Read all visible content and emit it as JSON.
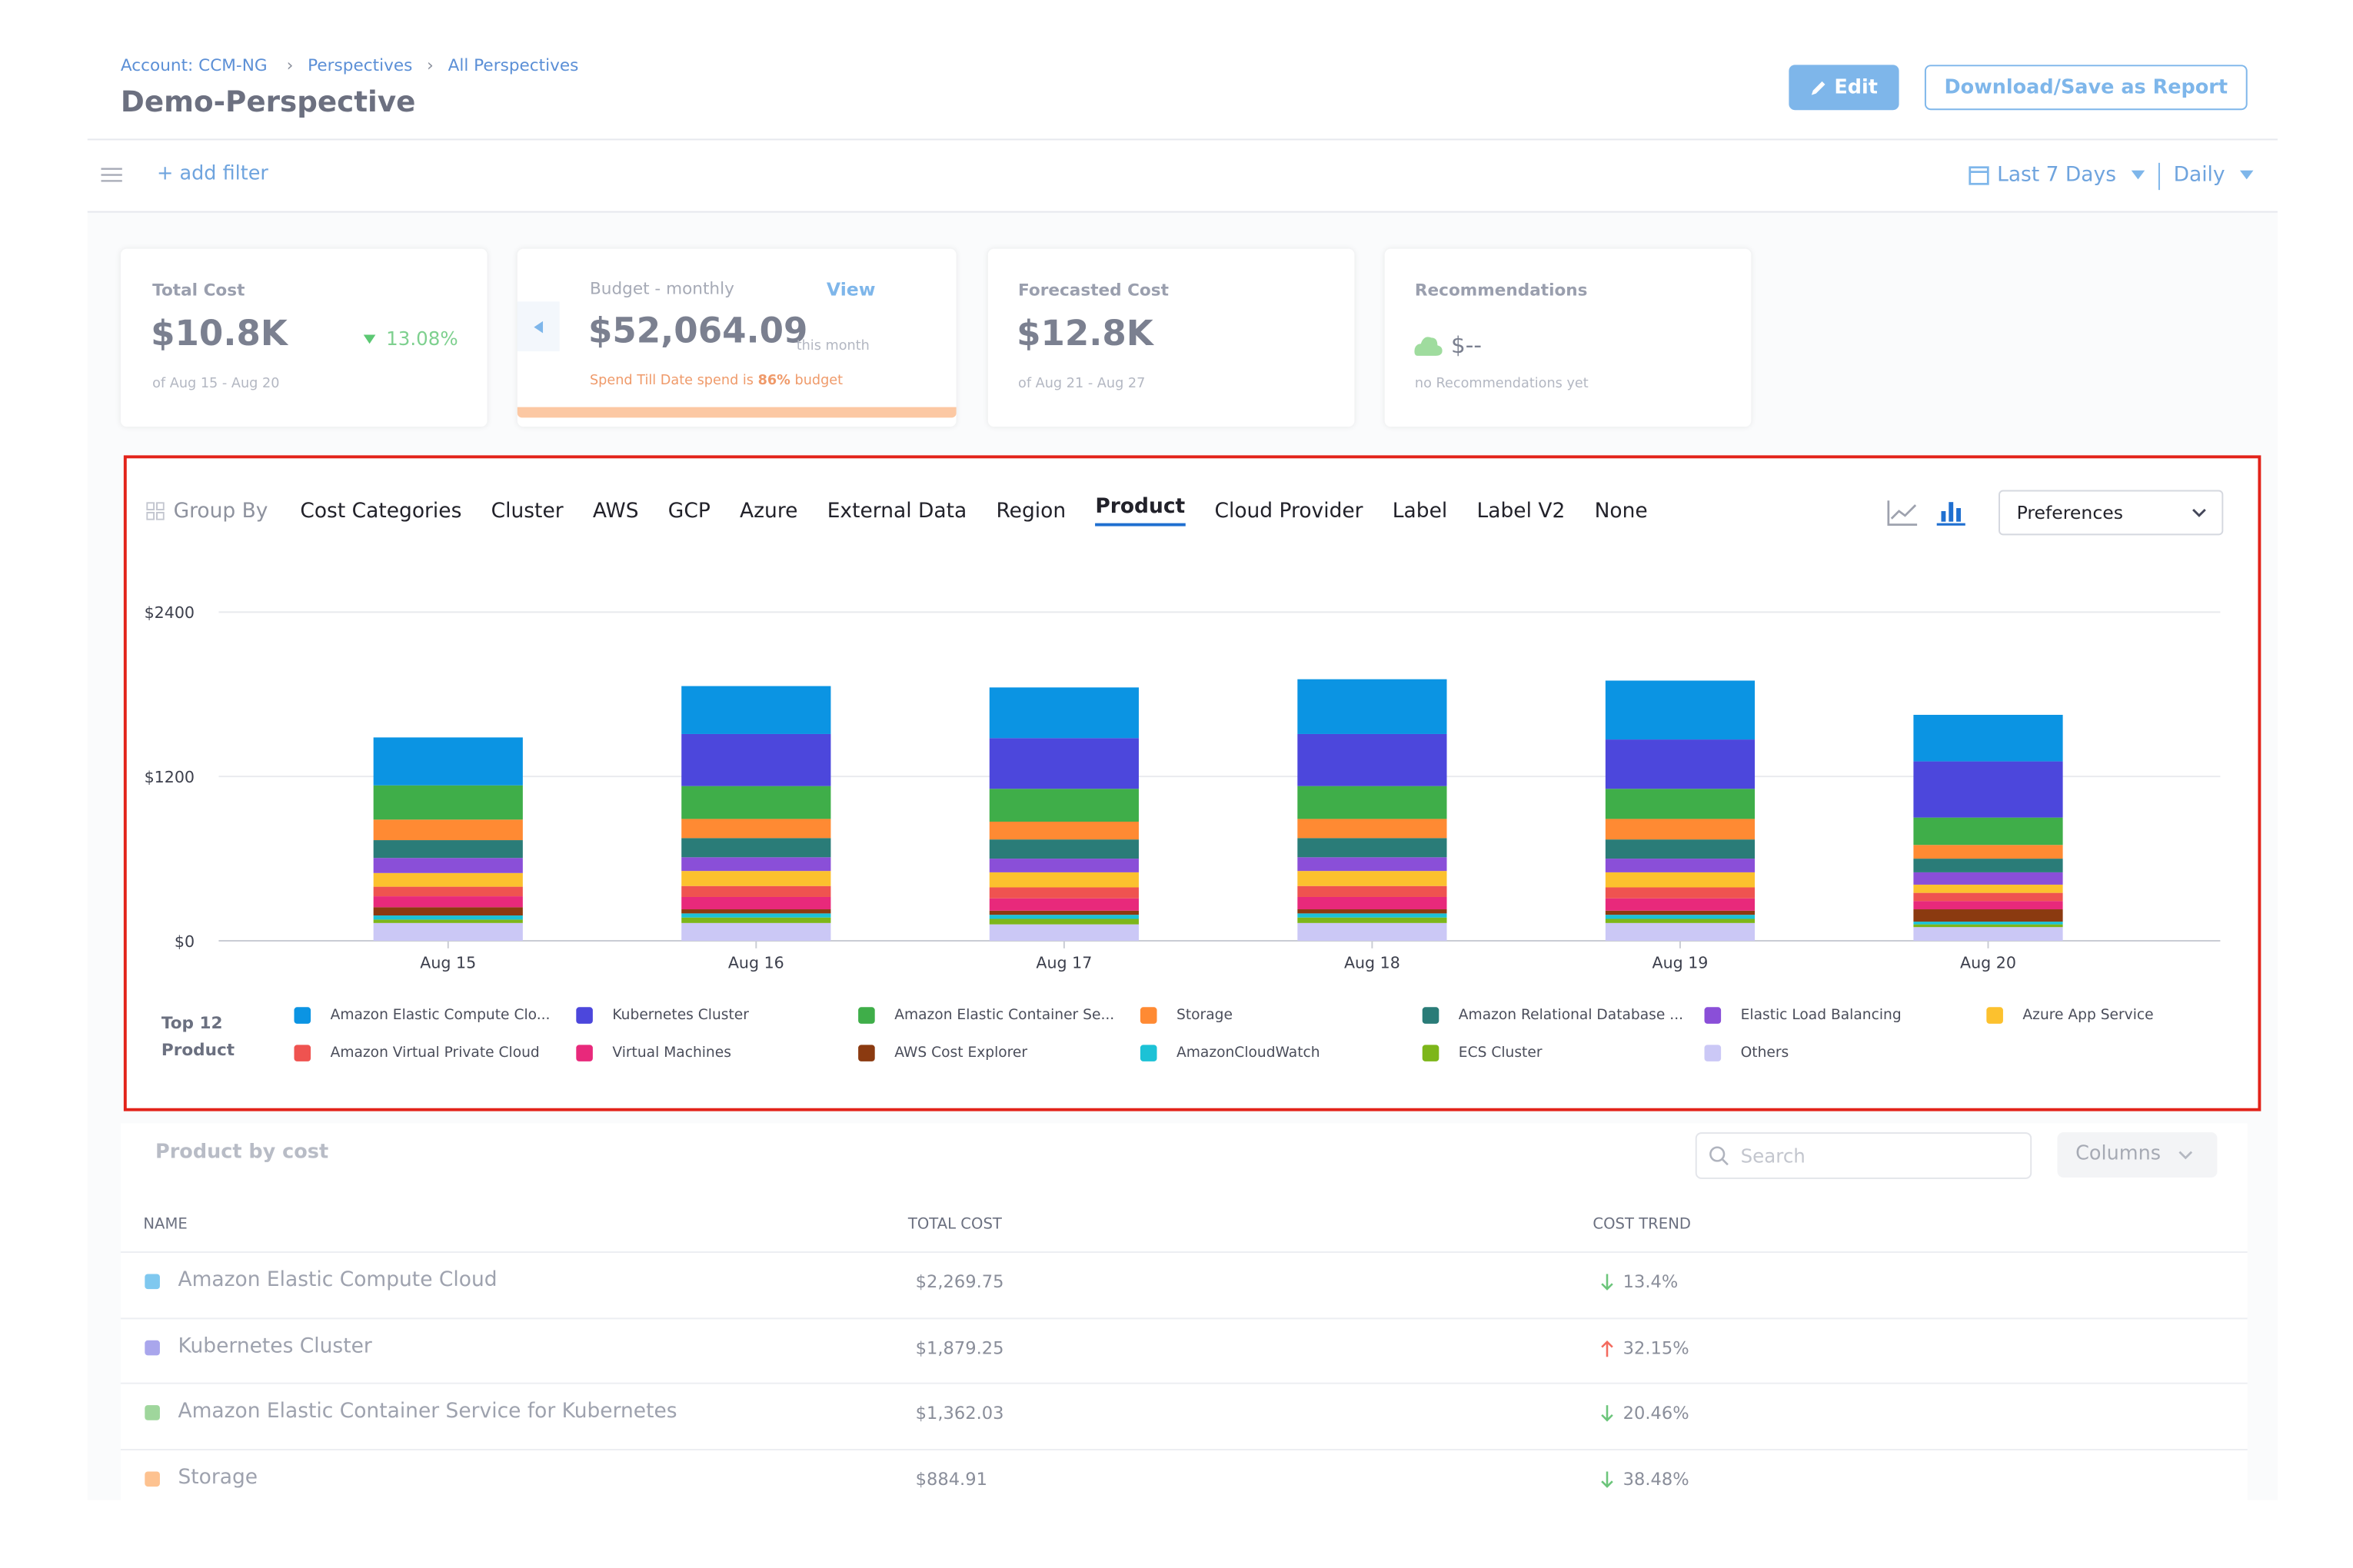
{
  "breadcrumb": [
    "Account: CCM-NG",
    "Perspectives",
    "All Perspectives"
  ],
  "title": "Demo-Perspective",
  "buttons": {
    "edit": "Edit",
    "download": "Download/Save as Report"
  },
  "filter": {
    "add": "+ add filter",
    "range": "Last 7 Days",
    "granularity": "Daily"
  },
  "cards": {
    "total": {
      "label": "Total Cost",
      "value": "$10.8K",
      "change": "13.08%",
      "period": "of Aug 15 - Aug 20"
    },
    "budget": {
      "label": "Budget - monthly",
      "link": "View",
      "value": "$52,064.09",
      "suffix": "this month",
      "note": [
        "Spend Till Date spend is ",
        "86%",
        " budget"
      ]
    },
    "forecast": {
      "label": "Forecasted Cost",
      "value": "$12.8K",
      "period": "of Aug 21 - Aug 27"
    },
    "recommendations": {
      "label": "Recommendations",
      "value": "$--",
      "note": "no Recommendations yet"
    }
  },
  "group_by": {
    "label": "Group By",
    "tabs": [
      "Cost Categories",
      "Cluster",
      "AWS",
      "GCP",
      "Azure",
      "External Data",
      "Region",
      "Product",
      "Cloud Provider",
      "Label",
      "Label V2",
      "None"
    ],
    "selected": 7,
    "preferences": "Preferences"
  },
  "chart_data": {
    "type": "bar",
    "stacked": true,
    "grid": true,
    "legend_title": [
      "Top 12",
      "Product"
    ],
    "categories": [
      "Aug 15",
      "Aug 16",
      "Aug 17",
      "Aug 18",
      "Aug 19",
      "Aug 20"
    ],
    "ylim": [
      0,
      2400
    ],
    "yticks": [
      {
        "value": 0,
        "label": "$0"
      },
      {
        "value": 1200,
        "label": "$1200"
      },
      {
        "value": 2400,
        "label": "$2400"
      }
    ],
    "series": [
      {
        "name": "Amazon Elastic Compute Clo...",
        "color": "#0b94e3",
        "values": [
          350,
          350,
          370,
          400,
          430,
          340
        ]
      },
      {
        "name": "Kubernetes Cluster",
        "color": "#4c47dc",
        "values": [
          0,
          380,
          370,
          380,
          360,
          410
        ]
      },
      {
        "name": "Amazon Elastic Container Se...",
        "color": "#3fae49",
        "values": [
          250,
          240,
          240,
          240,
          220,
          200
        ]
      },
      {
        "name": "Storage",
        "color": "#ff8a33",
        "values": [
          150,
          140,
          130,
          140,
          150,
          100
        ]
      },
      {
        "name": "Amazon Relational Database ...",
        "color": "#2a7c78",
        "values": [
          130,
          140,
          140,
          140,
          140,
          100
        ]
      },
      {
        "name": "Elastic Load Balancing",
        "color": "#8a4fd8",
        "values": [
          110,
          100,
          100,
          100,
          100,
          90
        ]
      },
      {
        "name": "Azure App Service",
        "color": "#fcc12e",
        "values": [
          100,
          110,
          110,
          110,
          110,
          60
        ]
      },
      {
        "name": "Amazon Virtual Private Cloud",
        "color": "#ef5350",
        "values": [
          70,
          80,
          80,
          80,
          80,
          60
        ]
      },
      {
        "name": "Virtual Machines",
        "color": "#e8297b",
        "values": [
          80,
          90,
          90,
          90,
          90,
          60
        ]
      },
      {
        "name": "AWS Cost Explorer",
        "color": "#8b3a10",
        "values": [
          60,
          30,
          30,
          30,
          30,
          90
        ]
      },
      {
        "name": "AmazonCloudWatch",
        "color": "#1cc2d6",
        "values": [
          30,
          30,
          30,
          30,
          30,
          20
        ]
      },
      {
        "name": "ECS Cluster",
        "color": "#7db61a",
        "values": [
          25,
          40,
          40,
          40,
          30,
          20
        ]
      },
      {
        "name": "Others",
        "color": "#cbc8f6",
        "values": [
          130,
          130,
          120,
          130,
          130,
          100
        ]
      }
    ]
  },
  "table": {
    "title": "Product by cost",
    "search": "Search",
    "columns_button": "Columns",
    "headers": [
      "NAME",
      "TOTAL COST",
      "COST TREND"
    ],
    "rows": [
      {
        "name": "Amazon Elastic Compute Cloud",
        "color": "#7fc8ef",
        "cost": "$2,269.75",
        "trend": "13.4%",
        "direction": "down"
      },
      {
        "name": "Kubernetes Cluster",
        "color": "#a9a6ec",
        "cost": "$1,879.25",
        "trend": "32.15%",
        "direction": "up"
      },
      {
        "name": "Amazon Elastic Container Service for Kubernetes",
        "color": "#9fd69c",
        "cost": "$1,362.03",
        "trend": "20.46%",
        "direction": "down"
      },
      {
        "name": "Storage",
        "color": "#fdc290",
        "cost": "$884.91",
        "trend": "38.48%",
        "direction": "down"
      }
    ]
  }
}
